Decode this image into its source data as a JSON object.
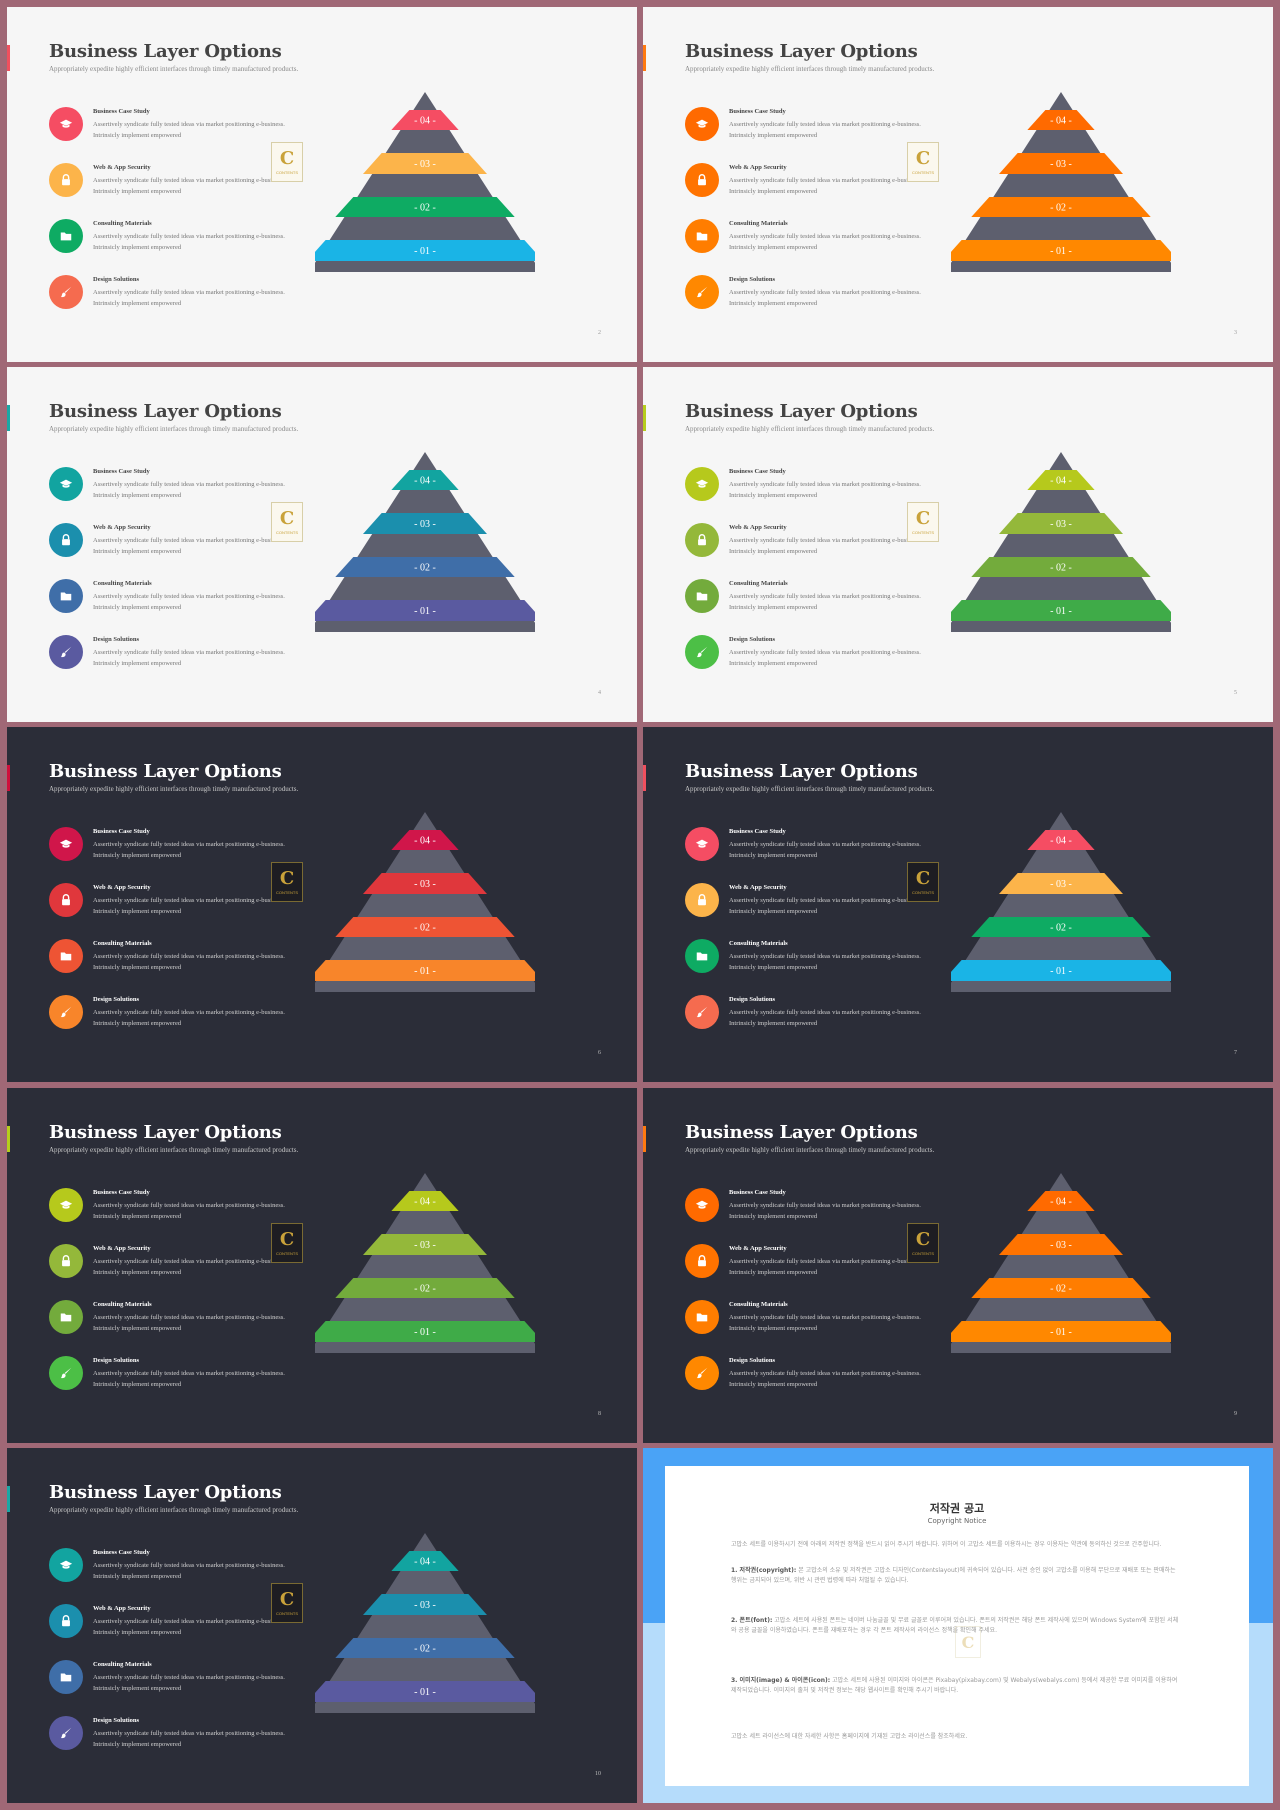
{
  "slides": [
    {
      "page": "2",
      "theme": "light",
      "accent": "#f0505e",
      "colors": [
        "#f54d63",
        "#fcb44a",
        "#0eab63",
        "#1ab4e6"
      ],
      "icon_colors": [
        "#f54d63",
        "#fcb44a",
        "#0eab63",
        "#f56b4f"
      ]
    },
    {
      "page": "3",
      "theme": "light",
      "accent": "#ff7a10",
      "colors": [
        "#ff6a00",
        "#ff7300",
        "#ff7d00",
        "#ff8800"
      ],
      "icon_colors": [
        "#ff6a00",
        "#ff7300",
        "#ff7d00",
        "#ff8800"
      ]
    },
    {
      "page": "4",
      "theme": "light",
      "accent": "#1aa7a5",
      "colors": [
        "#12a4a0",
        "#1b8fad",
        "#3f6ea8",
        "#5a5aa0"
      ],
      "icon_colors": [
        "#12a4a0",
        "#1b8fad",
        "#3f6ea8",
        "#5a5aa0"
      ]
    },
    {
      "page": "5",
      "theme": "light",
      "accent": "#b6cd1c",
      "colors": [
        "#b6c91c",
        "#94b83a",
        "#73ab3c",
        "#3fab48"
      ],
      "icon_colors": [
        "#b6c91c",
        "#94b83a",
        "#73ab3c",
        "#4cbf46"
      ]
    },
    {
      "page": "6",
      "theme": "dark",
      "accent": "#d0103c",
      "colors": [
        "#d0164a",
        "#e0373c",
        "#ee5434",
        "#f8852a"
      ],
      "icon_colors": [
        "#d0164a",
        "#e0373c",
        "#ee5434",
        "#f8852a"
      ]
    },
    {
      "page": "7",
      "theme": "dark",
      "accent": "#f0505e",
      "colors": [
        "#f54d63",
        "#fcb44a",
        "#0eab63",
        "#1ab4e6"
      ],
      "icon_colors": [
        "#f54d63",
        "#fcb44a",
        "#0eab63",
        "#f56b4f"
      ]
    },
    {
      "page": "8",
      "theme": "dark",
      "accent": "#b6cd1c",
      "colors": [
        "#b6c91c",
        "#94b83a",
        "#73ab3c",
        "#3fab48"
      ],
      "icon_colors": [
        "#b6c91c",
        "#94b83a",
        "#73ab3c",
        "#4cbf46"
      ]
    },
    {
      "page": "9",
      "theme": "dark",
      "accent": "#ff7a10",
      "colors": [
        "#ff6a00",
        "#ff7300",
        "#ff7d00",
        "#ff8800"
      ],
      "icon_colors": [
        "#ff6a00",
        "#ff7300",
        "#ff7d00",
        "#ff8800"
      ]
    },
    {
      "page": "10",
      "theme": "dark",
      "accent": "#1aa7a5",
      "colors": [
        "#12a4a0",
        "#1b8fad",
        "#3f6ea8",
        "#5a5aa0"
      ],
      "icon_colors": [
        "#12a4a0",
        "#1b8fad",
        "#3f6ea8",
        "#5a5aa0"
      ]
    }
  ],
  "content": {
    "title": "Business Layer Options",
    "subtitle": "Appropriately expedite highly efficient interfaces through timely manufactured products.",
    "items": [
      {
        "name": "Business Case Study",
        "desc": "Assertively syndicate fully  tested ideas via market positioning e-business. Intrinsicly implement empowered",
        "icon": "graduation-cap-icon"
      },
      {
        "name": "Web & App Security",
        "desc": "Assertively syndicate fully  tested ideas via market positioning e-business. Intrinsicly implement empowered",
        "icon": "lock-icon"
      },
      {
        "name": "Consulting Materials",
        "desc": "Assertively syndicate fully  tested ideas via market positioning e-business. Intrinsicly implement empowered",
        "icon": "folder-icon"
      },
      {
        "name": "Design Solutions",
        "desc": "Assertively syndicate fully  tested ideas via market positioning e-business. Intrinsicly implement empowered",
        "icon": "paint-brush-icon"
      }
    ],
    "levels": [
      "- 04 -",
      "- 03 -",
      "- 02 -",
      "- 01 -"
    ],
    "logo_letter": "C",
    "logo_text": "CONTENTS"
  },
  "copyright": {
    "title": "저작권 공고",
    "subtitle": "Copyright Notice",
    "intro": "고맙소 세트를 이용하시기 전에 아래의 저작권 정책을 반드시 읽어 주시기 바랍니다. 위하여 이 고맙소 세트를 이용하시는 경우 이용자는 약관에 동의하신 것으로 간주합니다.",
    "p1_head": "1. 저작권(copyright):",
    "p1": "본 고맙소의 소유 및 저작권은 고맙소 디자인(Contentslayout)에 귀속되어 있습니다. 사전 승인 없이 고맙소를 이용해 무단으로 재배포 또는 판매하는 행위는 금지되어 있으며, 위반 시 관련 법령에 따라 처벌될 수 있습니다.",
    "p2_head": "2. 폰트(font):",
    "p2": "고맙소 세트에 사용된 폰트는 네이버 나눔글꼴 및 무료 글꼴로 이루어져 있습니다. 폰트의 저작권은 해당 폰트 제작사에 있으며 Windows System에 포함된 서체와 공용 글꼴을 이용하였습니다. 폰트를 재배포하는 경우 각 폰트 제작사의 라이선스 정책을 확인해 주세요.",
    "p3_head": "3. 이미지(image) & 아이콘(icon):",
    "p3": "고맙소 세트에 사용된 이미지와 아이콘은 Pixabay(pixabay.com) 및 Webalys(webalys.com) 등에서 제공한 무료 이미지를 이용하여 제작되었습니다. 이미지의 출처 및 저작권 정보는 해당 웹사이트를 확인해 주시기 바랍니다.",
    "outro": "고맙소 세트 라이선스에 대한 자세한 사항은 홈페이지에 기재된 고맙소 라이선스를 참조하세요."
  }
}
